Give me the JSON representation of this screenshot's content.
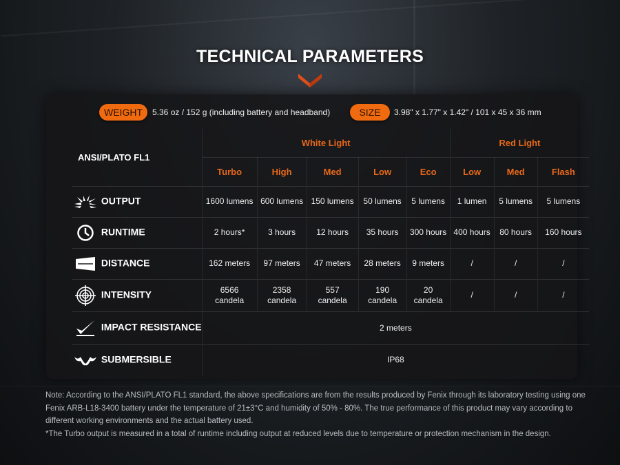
{
  "title": "TECHNICAL PARAMETERS",
  "colors": {
    "accent": "#f06a10",
    "header_text": "#e8681a"
  },
  "specs": {
    "weight_label": "WEIGHT",
    "weight_value": "5.36 oz / 152 g (including battery and headband)",
    "size_label": "SIZE",
    "size_value": "3.98\" x 1.77\" x 1.42\" / 101 x 45 x 36 mm"
  },
  "table": {
    "corner": "ANSI/PLATO FL1",
    "groups": [
      "White Light",
      "Red Light"
    ],
    "modes": [
      "Turbo",
      "High",
      "Med",
      "Low",
      "Eco",
      "Low",
      "Med",
      "Flash"
    ],
    "rows": [
      {
        "icon": "output-burst-icon",
        "label": "OUTPUT",
        "values": [
          "1600 lumens",
          "600 lumens",
          "150 lumens",
          "50 lumens",
          "5 lumens",
          "1 lumen",
          "5 lumens",
          "5 lumens"
        ]
      },
      {
        "icon": "clock-icon",
        "label": "RUNTIME",
        "values": [
          "2 hours*",
          "3 hours",
          "12 hours",
          "35 hours",
          "300 hours",
          "400 hours",
          "80 hours",
          "160 hours"
        ]
      },
      {
        "icon": "beam-distance-icon",
        "label": "DISTANCE",
        "values": [
          "162 meters",
          "97 meters",
          "47 meters",
          "28 meters",
          "9 meters",
          "/",
          "/",
          "/"
        ]
      },
      {
        "icon": "target-icon",
        "label": "INTENSITY",
        "values": [
          [
            "6566",
            "candela"
          ],
          [
            "2358",
            "candela"
          ],
          [
            "557",
            "candela"
          ],
          [
            "190",
            "candela"
          ],
          [
            "20",
            "candela"
          ],
          "/",
          "/",
          "/"
        ]
      },
      {
        "icon": "impact-icon",
        "label": "IMPACT RESISTANCE",
        "value": "2 meters"
      },
      {
        "icon": "water-icon",
        "label": "SUBMERSIBLE",
        "value": "IP68"
      }
    ]
  },
  "note": [
    "Note: According to the ANSI/PLATO FL1 standard, the above specifications are from the results produced by Fenix through its laboratory testing using one Fenix ARB-L18-3400 battery under the temperature of 21±3°C and humidity of 50% - 80%. The true performance of this product may vary according to different working environments and the actual battery used.",
    "*The Turbo output is measured in a total of runtime including output at reduced levels due to temperature or protection mechanism in the design."
  ]
}
